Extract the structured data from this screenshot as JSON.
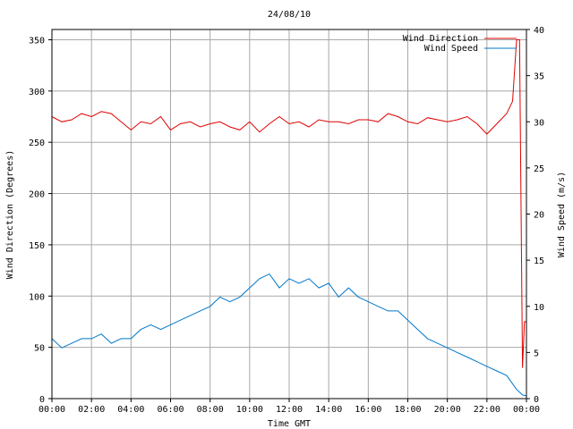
{
  "chart_data": {
    "type": "line",
    "title": "24/08/10",
    "xlabel": "Time GMT",
    "ylabel_left": "Wind Direction (Degrees)",
    "ylabel_right": "Wind Speed (m/s)",
    "x_ticks": [
      "00:00",
      "02:00",
      "04:00",
      "06:00",
      "08:00",
      "10:00",
      "12:00",
      "14:00",
      "16:00",
      "18:00",
      "20:00",
      "22:00",
      "00:00"
    ],
    "xlim_hours": [
      0,
      24
    ],
    "y_left_ticks": [
      "0",
      "50",
      "100",
      "150",
      "200",
      "250",
      "300",
      "350"
    ],
    "y_left_lim": [
      0,
      360
    ],
    "y_right_ticks": [
      "0",
      "5",
      "10",
      "15",
      "20",
      "25",
      "30",
      "35",
      "40"
    ],
    "y_right_lim": [
      0,
      40
    ],
    "grid": true,
    "legend_position": "top-right",
    "series": [
      {
        "name": "Wind Direction",
        "axis": "left",
        "color": "#e00000",
        "x": [
          0,
          0.5,
          1,
          1.5,
          2,
          2.5,
          3,
          3.5,
          4,
          4.5,
          5,
          5.5,
          6,
          6.5,
          7,
          7.5,
          8,
          8.5,
          9,
          9.5,
          10,
          10.5,
          11,
          11.5,
          12,
          12.5,
          13,
          13.5,
          14,
          14.5,
          15,
          15.5,
          16,
          16.5,
          17,
          17.5,
          18,
          18.5,
          19,
          19.5,
          20,
          20.5,
          21,
          21.5,
          22,
          22.5,
          23,
          23.3,
          23.5,
          23.65,
          23.8,
          23.9,
          24
        ],
        "values": [
          275,
          270,
          272,
          278,
          275,
          280,
          278,
          270,
          262,
          270,
          268,
          275,
          262,
          268,
          270,
          265,
          268,
          270,
          265,
          262,
          270,
          260,
          268,
          275,
          268,
          270,
          265,
          272,
          270,
          270,
          268,
          272,
          272,
          270,
          278,
          275,
          270,
          268,
          274,
          272,
          270,
          272,
          275,
          268,
          258,
          268,
          278,
          290,
          350,
          350,
          30,
          75,
          75
        ]
      },
      {
        "name": "Wind Speed",
        "axis": "right",
        "color": "#0077cc",
        "x": [
          0,
          0.5,
          1,
          1.5,
          2,
          2.5,
          3,
          3.5,
          4,
          4.5,
          5,
          5.5,
          6,
          6.5,
          7,
          7.5,
          8,
          8.5,
          9,
          9.5,
          10,
          10.5,
          11,
          11.5,
          12,
          12.5,
          13,
          13.5,
          14,
          14.5,
          15,
          15.5,
          16,
          16.5,
          17,
          17.5,
          18,
          18.5,
          19,
          19.5,
          20,
          20.5,
          21,
          21.5,
          22,
          22.5,
          23,
          23.5,
          23.8,
          24
        ],
        "values": [
          6.5,
          5.5,
          6.0,
          6.5,
          6.5,
          7.0,
          6.0,
          6.5,
          6.5,
          7.5,
          8.0,
          7.5,
          8.0,
          8.5,
          9.0,
          9.5,
          10.0,
          11.0,
          10.5,
          11.0,
          12.0,
          13.0,
          13.5,
          12.0,
          13.0,
          12.5,
          13.0,
          12.0,
          12.5,
          11.0,
          12.0,
          11.0,
          10.5,
          10.0,
          9.5,
          9.5,
          8.5,
          7.5,
          6.5,
          6.0,
          5.5,
          5.0,
          4.5,
          4.0,
          3.5,
          3.0,
          2.5,
          1.0,
          0.4,
          0.3
        ]
      }
    ]
  }
}
